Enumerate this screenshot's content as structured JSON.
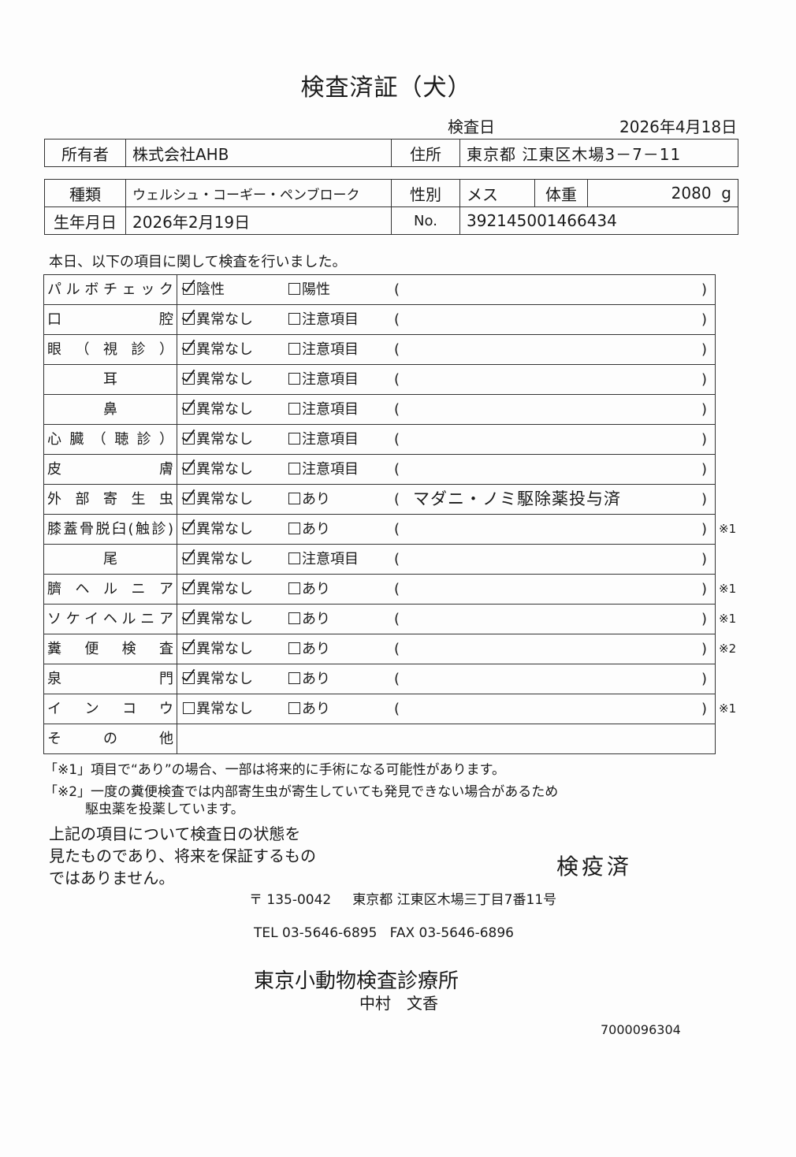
{
  "title": "検査済証（犬）",
  "inspection_date": {
    "label": "検査日",
    "value": "2026年4月18日"
  },
  "owner": {
    "label": "所有者",
    "value": "株式会社AHB",
    "address_label": "住所",
    "address": "東京都 江東区木場3－7－11"
  },
  "pet": {
    "breed_label": "種類",
    "breed": "ウェルシュ・コーギー・ペンブローク",
    "sex_label": "性別",
    "sex": "メス",
    "weight_label": "体重",
    "weight": "2080",
    "weight_unit": "g",
    "birth_label": "生年月日",
    "birth": "2026年2月19日",
    "no_label": "No.",
    "no": "392145001466434"
  },
  "intro": "本日、以下の項目に関して検査を行いました。",
  "paren_open": "(",
  "paren_close": ")",
  "items": [
    {
      "label": "パルボチェック",
      "opt1": "陰性",
      "opt1_checked": true,
      "opt2": "陽性",
      "opt2_checked": false,
      "remark": "",
      "note": ""
    },
    {
      "label": "口腔",
      "opt1": "異常なし",
      "opt1_checked": true,
      "opt2": "注意項目",
      "opt2_checked": false,
      "remark": "",
      "note": ""
    },
    {
      "label": "眼（視診）",
      "opt1": "異常なし",
      "opt1_checked": true,
      "opt2": "注意項目",
      "opt2_checked": false,
      "remark": "",
      "note": ""
    },
    {
      "label": "耳",
      "opt1": "異常なし",
      "opt1_checked": true,
      "opt2": "注意項目",
      "opt2_checked": false,
      "remark": "",
      "note": ""
    },
    {
      "label": "鼻",
      "opt1": "異常なし",
      "opt1_checked": true,
      "opt2": "注意項目",
      "opt2_checked": false,
      "remark": "",
      "note": ""
    },
    {
      "label": "心臓（聴診）",
      "opt1": "異常なし",
      "opt1_checked": true,
      "opt2": "注意項目",
      "opt2_checked": false,
      "remark": "",
      "note": ""
    },
    {
      "label": "皮膚",
      "opt1": "異常なし",
      "opt1_checked": true,
      "opt2": "注意項目",
      "opt2_checked": false,
      "remark": "",
      "note": ""
    },
    {
      "label": "外部寄生虫",
      "opt1": "異常なし",
      "opt1_checked": true,
      "opt2": "あり",
      "opt2_checked": false,
      "remark": "マダニ・ノミ駆除薬投与済",
      "note": ""
    },
    {
      "label": "膝蓋骨脱臼(触診)",
      "opt1": "異常なし",
      "opt1_checked": true,
      "opt2": "あり",
      "opt2_checked": false,
      "remark": "",
      "note": "※1"
    },
    {
      "label": "尾",
      "opt1": "異常なし",
      "opt1_checked": true,
      "opt2": "注意項目",
      "opt2_checked": false,
      "remark": "",
      "note": ""
    },
    {
      "label": "臍ヘルニア",
      "opt1": "異常なし",
      "opt1_checked": true,
      "opt2": "あり",
      "opt2_checked": false,
      "remark": "",
      "note": "※1"
    },
    {
      "label": "ソケイヘルニア",
      "opt1": "異常なし",
      "opt1_checked": true,
      "opt2": "あり",
      "opt2_checked": false,
      "remark": "",
      "note": "※1"
    },
    {
      "label": "糞便検査",
      "opt1": "異常なし",
      "opt1_checked": true,
      "opt2": "あり",
      "opt2_checked": false,
      "remark": "",
      "note": "※2"
    },
    {
      "label": "泉門",
      "opt1": "異常なし",
      "opt1_checked": true,
      "opt2": "あり",
      "opt2_checked": false,
      "remark": "",
      "note": ""
    },
    {
      "label": "インコウ",
      "opt1": "異常なし",
      "opt1_checked": false,
      "opt2": "あり",
      "opt2_checked": false,
      "remark": "",
      "note": "※1"
    }
  ],
  "other_label": "その他",
  "footnotes": {
    "n1": "「※1」項目で“あり”の場合、一部は将来的に手術になる可能性があります。",
    "n2a": "「※2」一度の糞便検査では内部寄生虫が寄生していても発見できない場合があるため",
    "n2b": "駆虫薬を投薬しています。"
  },
  "disclaimer": [
    "上記の項目について検査日の状態を",
    "見たものであり、将来を保証するもの",
    "ではありません。"
  ],
  "stamp": "検疫済",
  "clinic": {
    "postal": "〒 135-0042",
    "address": "東京都 江東区木場三丁目7番11号",
    "tel": "TEL 03-5646-6895",
    "fax": "FAX 03-5646-6896",
    "name": "東京小動物検査診療所",
    "person": "中村　文香",
    "code": "7000096304"
  }
}
